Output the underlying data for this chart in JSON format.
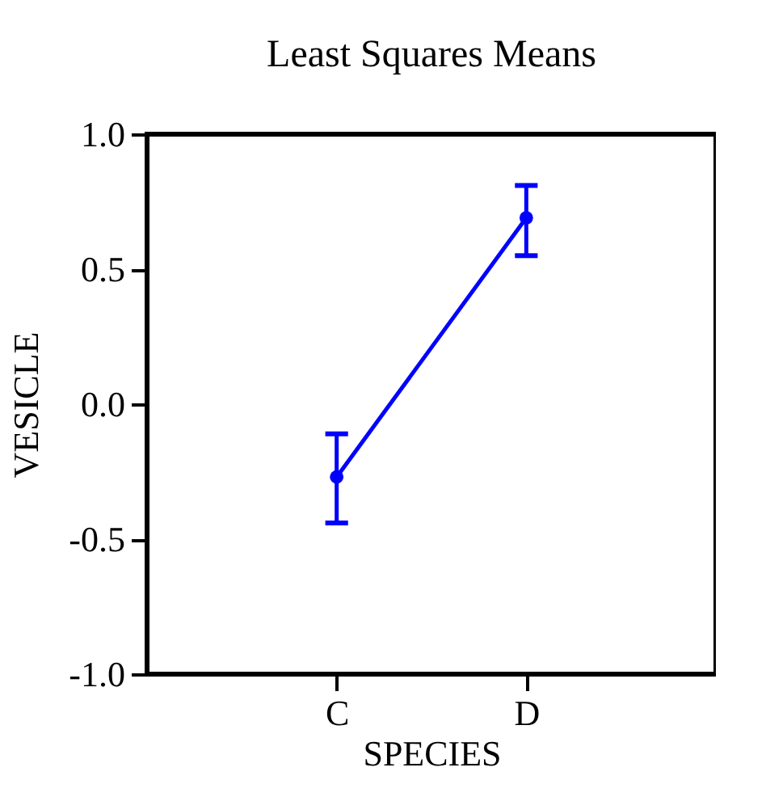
{
  "chart_data": {
    "type": "line",
    "title": "Least Squares Means",
    "xlabel": "SPECIES",
    "ylabel": "VESICLE",
    "categories": [
      "C",
      "D"
    ],
    "series": [
      {
        "color": "#0000ff",
        "values": [
          -0.27,
          0.69
        ],
        "errors": [
          [
            -0.44,
            -0.11
          ],
          [
            0.55,
            0.81
          ]
        ]
      }
    ],
    "ylim": [
      -1.0,
      1.0
    ],
    "yticks": [
      {
        "value": -1.0,
        "label": "-1.0"
      },
      {
        "value": -0.5,
        "label": "-0.5"
      },
      {
        "value": 0.0,
        "label": "0.0"
      },
      {
        "value": 0.5,
        "label": "0.5"
      },
      {
        "value": 1.0,
        "label": "1.0"
      }
    ],
    "marker": "circle",
    "grid": false
  }
}
